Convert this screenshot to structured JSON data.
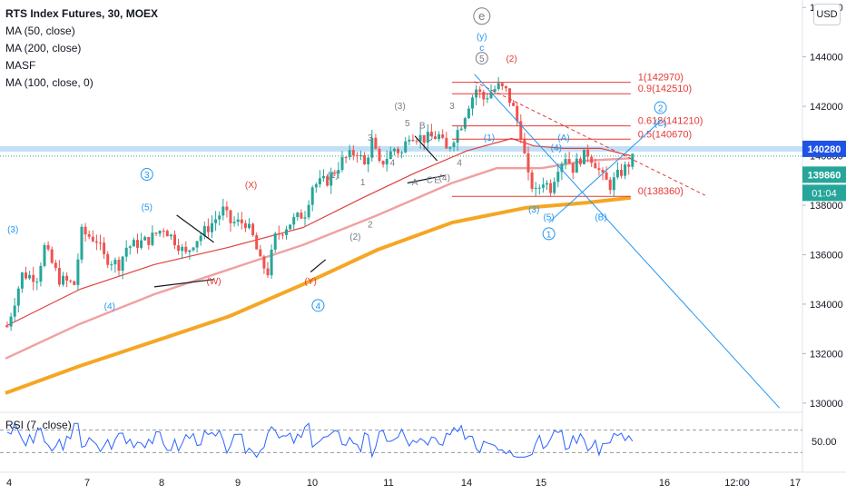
{
  "header": {
    "title": "RTS Index Futures, 30, MOEX",
    "indicators": [
      "MA (50, close)",
      "MA (200, close)",
      "MASF",
      "MA (100, close, 0)"
    ],
    "currency": "USD"
  },
  "rsi": {
    "label": "RSI (7, close)",
    "level_label": "50.00",
    "upper": 70,
    "lower": 30,
    "mid": 50
  },
  "colors": {
    "up": "#26a69a",
    "down": "#ef5350",
    "ma50": "#e0413c",
    "ma100": "#f0a0a0",
    "ma200": "#f5a623",
    "wave_blue": "#2196f3",
    "wave_red": "#e53935",
    "wave_grey": "#787b86",
    "fib": "#e53935",
    "resistance": "#8ec5f0",
    "price_badge": "#1e53e5",
    "last_price_badge": "#26a69a"
  },
  "chart_data": {
    "type": "candlestick",
    "title": "RTS Index Futures, 30, MOEX",
    "ylim": [
      129700,
      146300
    ],
    "y_ticks": [
      130000,
      132000,
      134000,
      136000,
      138000,
      140000,
      142000,
      144000,
      146000
    ],
    "x_ticks": [
      "4",
      "7",
      "8",
      "9",
      "10",
      "11",
      "14",
      "15",
      "16",
      "12:00",
      "17"
    ],
    "price_badges": [
      {
        "label": "140280",
        "value": 140280
      },
      {
        "label": "139860",
        "value": 139860
      },
      {
        "label": "01:04",
        "value": 139860
      }
    ],
    "close_path": [
      [
        0,
        133100
      ],
      [
        2,
        135200
      ],
      [
        4,
        135100
      ],
      [
        5,
        136300
      ],
      [
        7,
        135000
      ],
      [
        9,
        134800
      ],
      [
        10,
        136900
      ],
      [
        12,
        136600
      ],
      [
        13,
        135900
      ],
      [
        15,
        135600
      ],
      [
        16,
        136300
      ],
      [
        19,
        136600
      ],
      [
        21,
        137100
      ],
      [
        23,
        136400
      ],
      [
        24,
        136000
      ],
      [
        25,
        136500
      ],
      [
        27,
        137100
      ],
      [
        29,
        137800
      ],
      [
        30,
        137300
      ],
      [
        32,
        137300
      ],
      [
        33,
        136700
      ],
      [
        34,
        135700
      ],
      [
        35,
        135300
      ],
      [
        36,
        136700
      ],
      [
        38,
        137300
      ],
      [
        40,
        137700
      ],
      [
        41,
        138800
      ],
      [
        43,
        139000
      ],
      [
        45,
        139800
      ],
      [
        47,
        140200
      ],
      [
        48,
        139600
      ],
      [
        49,
        140600
      ],
      [
        50,
        139600
      ],
      [
        52,
        140300
      ],
      [
        53,
        140100
      ],
      [
        54,
        140900
      ],
      [
        56,
        140700
      ],
      [
        58,
        140800
      ],
      [
        59,
        140200
      ],
      [
        61,
        141300
      ],
      [
        62,
        142100
      ],
      [
        63,
        142700
      ],
      [
        64,
        142300
      ],
      [
        65,
        142600
      ],
      [
        66,
        142800
      ],
      [
        67,
        142600
      ],
      [
        68,
        141900
      ],
      [
        69,
        140900
      ],
      [
        70,
        139100
      ],
      [
        71,
        138500
      ],
      [
        72,
        139000
      ],
      [
        73,
        138700
      ],
      [
        74,
        139600
      ],
      [
        75,
        140000
      ],
      [
        76,
        139500
      ],
      [
        77,
        139900
      ],
      [
        78,
        140100
      ],
      [
        79,
        139700
      ],
      [
        80,
        139100
      ],
      [
        81,
        138800
      ],
      [
        82,
        139200
      ],
      [
        83,
        139500
      ],
      [
        84,
        139860
      ]
    ],
    "ma50": [
      [
        0,
        133100
      ],
      [
        10,
        134600
      ],
      [
        20,
        135600
      ],
      [
        30,
        136300
      ],
      [
        40,
        137100
      ],
      [
        48,
        138300
      ],
      [
        55,
        139300
      ],
      [
        62,
        140200
      ],
      [
        68,
        140700
      ],
      [
        71,
        140400
      ],
      [
        75,
        140300
      ],
      [
        80,
        140300
      ],
      [
        84,
        140000
      ]
    ],
    "ma100": [
      [
        0,
        131800
      ],
      [
        10,
        133200
      ],
      [
        20,
        134400
      ],
      [
        30,
        135400
      ],
      [
        40,
        136400
      ],
      [
        50,
        137600
      ],
      [
        60,
        138900
      ],
      [
        66,
        139500
      ],
      [
        72,
        139500
      ],
      [
        78,
        139800
      ],
      [
        84,
        139900
      ]
    ],
    "ma200": [
      [
        0,
        130400
      ],
      [
        10,
        131500
      ],
      [
        20,
        132500
      ],
      [
        30,
        133500
      ],
      [
        40,
        134800
      ],
      [
        50,
        136200
      ],
      [
        60,
        137300
      ],
      [
        70,
        137900
      ],
      [
        78,
        138100
      ],
      [
        84,
        138300
      ]
    ],
    "resistance_level": 140280,
    "fibonacci": [
      {
        "label": "1(142970)",
        "value": 142970
      },
      {
        "label": "0.9(142510)",
        "value": 142510
      },
      {
        "label": "0.618(141210)",
        "value": 141210
      },
      {
        "label": "0.5(140670)",
        "value": 140670
      },
      {
        "label": "0(138360)",
        "value": 138360
      }
    ],
    "trendlines": [
      {
        "from": [
          63,
          143000
        ],
        "to": [
          94,
          138400
        ],
        "style": "dashed-red"
      },
      {
        "from": [
          63,
          143300
        ],
        "to": [
          104,
          129800
        ],
        "style": "blue"
      },
      {
        "from": [
          73,
          137300
        ],
        "to": [
          88,
          141400
        ],
        "style": "blue"
      }
    ],
    "wave_labels": [
      {
        "text": "e",
        "x": 64,
        "y": 145500,
        "color": "grey",
        "circled": true
      },
      {
        "text": "(y)",
        "x": 64,
        "y": 144700,
        "color": "blue"
      },
      {
        "text": "c",
        "x": 64,
        "y": 144250,
        "color": "blue"
      },
      {
        "text": "5",
        "x": 64,
        "y": 143800,
        "color": "grey",
        "circled": true
      },
      {
        "text": "(2)",
        "x": 68,
        "y": 143800,
        "color": "red"
      },
      {
        "text": "(3)",
        "x": 1,
        "y": 136900,
        "color": "blue"
      },
      {
        "text": "3",
        "x": 19,
        "y": 139100,
        "color": "blue",
        "circled": true
      },
      {
        "text": "(5)",
        "x": 19,
        "y": 137800,
        "color": "blue"
      },
      {
        "text": "(4)",
        "x": 14,
        "y": 133800,
        "color": "blue"
      },
      {
        "text": "(X)",
        "x": 33,
        "y": 138700,
        "color": "red"
      },
      {
        "text": "(W)",
        "x": 28,
        "y": 134800,
        "color": "red"
      },
      {
        "text": "(Y)",
        "x": 41,
        "y": 134800,
        "color": "red"
      },
      {
        "text": "4",
        "x": 42,
        "y": 133800,
        "color": "blue",
        "circled": true
      },
      {
        "text": "(2)",
        "x": 47,
        "y": 136600,
        "color": "grey"
      },
      {
        "text": "(1)",
        "x": 44,
        "y": 139100,
        "color": "grey"
      },
      {
        "text": "1",
        "x": 48,
        "y": 138800,
        "color": "grey"
      },
      {
        "text": "2",
        "x": 49,
        "y": 137100,
        "color": "grey"
      },
      {
        "text": "3",
        "x": 49,
        "y": 140600,
        "color": "grey"
      },
      {
        "text": "4",
        "x": 52,
        "y": 139600,
        "color": "grey"
      },
      {
        "text": "(3)",
        "x": 53,
        "y": 141900,
        "color": "grey"
      },
      {
        "text": "5",
        "x": 54,
        "y": 141200,
        "color": "grey"
      },
      {
        "text": "B",
        "x": 56,
        "y": 141100,
        "color": "grey"
      },
      {
        "text": "D",
        "x": 57,
        "y": 140600,
        "color": "grey"
      },
      {
        "text": "A",
        "x": 55,
        "y": 138800,
        "color": "grey"
      },
      {
        "text": "C",
        "x": 57,
        "y": 138900,
        "color": "grey"
      },
      {
        "text": "E",
        "x": 58,
        "y": 138900,
        "color": "grey"
      },
      {
        "text": "(4)",
        "x": 59,
        "y": 139000,
        "color": "grey"
      },
      {
        "text": "3",
        "x": 60,
        "y": 141900,
        "color": "grey"
      },
      {
        "text": "4",
        "x": 61,
        "y": 139600,
        "color": "grey"
      },
      {
        "text": "(1)",
        "x": 65,
        "y": 140600,
        "color": "blue"
      },
      {
        "text": "(3)",
        "x": 71,
        "y": 137700,
        "color": "blue"
      },
      {
        "text": "(5)",
        "x": 73,
        "y": 137400,
        "color": "blue"
      },
      {
        "text": "1",
        "x": 73,
        "y": 136700,
        "color": "blue",
        "circled": true
      },
      {
        "text": "(4)",
        "x": 74,
        "y": 140200,
        "color": "blue"
      },
      {
        "text": "(A)",
        "x": 75,
        "y": 140600,
        "color": "blue"
      },
      {
        "text": "(B)",
        "x": 80,
        "y": 137400,
        "color": "blue"
      },
      {
        "text": "2",
        "x": 88,
        "y": 141800,
        "color": "blue",
        "circled": true
      },
      {
        "text": "(C)",
        "x": 88,
        "y": 141200,
        "color": "blue"
      }
    ]
  }
}
